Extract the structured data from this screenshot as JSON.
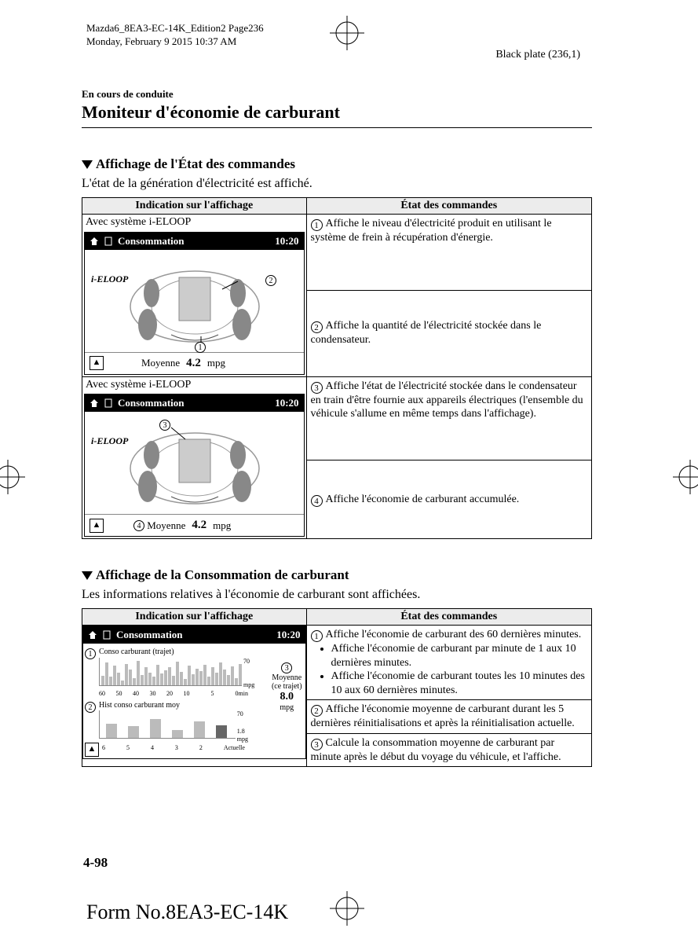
{
  "meta": {
    "file_line1": "Mazda6_8EA3-EC-14K_Edition2 Page236",
    "file_line2": "Monday, February 9 2015 10:37 AM",
    "plate": "Black plate (236,1)"
  },
  "header": {
    "runhead": "En cours de conduite",
    "title": "Moniteur d'économie de carburant"
  },
  "section1": {
    "heading": "Affichage de l'État des commandes",
    "intro": "L'état de la génération d'électricité est affiché.",
    "table": {
      "col1": "Indication sur l'affichage",
      "col2": "État des commandes",
      "row1_left_title": "Avec système i-ELOOP",
      "row2_left_title": "Avec système i-ELOOP",
      "screen": {
        "title": "Consommation",
        "time": "10:20",
        "ieloop": "i-ELOOP",
        "footer_label": "Moyenne",
        "footer_value": "4.2",
        "footer_unit": "mpg"
      },
      "states": {
        "s1": "Affiche le niveau d'électricité produit en utilisant le système de frein à récupération d'énergie.",
        "s2": "Affiche la quantité de l'électricité stockée dans le condensateur.",
        "s3": "Affiche l'état de l'électricité stockée dans le condensateur en train d'être fournie aux appareils électriques (l'ensemble du véhicule s'allume en même temps dans l'affichage).",
        "s4": "Affiche l'économie de carburant accumulée."
      }
    }
  },
  "section2": {
    "heading": "Affichage de la Consommation de carburant",
    "intro": "Les informations relatives à l'économie de carburant sont affichées.",
    "table": {
      "col1": "Indication sur l'affichage",
      "col2": "État des commandes",
      "screen": {
        "title": "Consommation",
        "time": "10:20",
        "chart1_title": "Conso carburant (trajet)",
        "chart1_ymax": "70",
        "chart1_yunit": "mpg",
        "chart1_xlabels": [
          "60",
          "50",
          "40",
          "30",
          "20",
          "10",
          "",
          "5",
          "",
          "0min"
        ],
        "chart1_bars": [
          22,
          55,
          20,
          48,
          30,
          12,
          52,
          38,
          18,
          60,
          25,
          45,
          30,
          20,
          50,
          28,
          36,
          44,
          22,
          58,
          32,
          16,
          48,
          26,
          40,
          34,
          50,
          20,
          44,
          30,
          55,
          38,
          24,
          46,
          18,
          52
        ],
        "chart2_title": "Hist conso carburant moy",
        "chart2_ymax": "70",
        "chart2_yunit": "mpg",
        "chart2_xlabels": [
          "6",
          "5",
          "4",
          "3",
          "2",
          "Actuelle"
        ],
        "chart2_bars": [
          35,
          30,
          48,
          20,
          42,
          32
        ],
        "chart2_last": "1.8",
        "moyenne_label": "Moyenne",
        "moyenne_sub": "(ce trajet)",
        "moyenne_value": "8.0",
        "moyenne_unit": "mpg"
      },
      "states": {
        "s1_main": "Affiche l'économie de carburant des 60 dernières minutes.",
        "s1_b1": "Affiche l'économie de carburant par minute de 1 aux 10 dernières minutes.",
        "s1_b2": "Affiche l'économie de carburant toutes les 10 minutes des 10 aux 60 dernières minutes.",
        "s2": "Affiche l'économie moyenne de carburant durant les 5 dernières réinitialisations et après la réinitialisation actuelle.",
        "s3": "Calcule la consommation moyenne de carburant par minute après le début du voyage du véhicule, et l'affiche."
      }
    }
  },
  "footer": {
    "page": "4-98",
    "form": "Form No.8EA3-EC-14K"
  },
  "nums": {
    "n1": "1",
    "n2": "2",
    "n3": "3",
    "n4": "4"
  }
}
